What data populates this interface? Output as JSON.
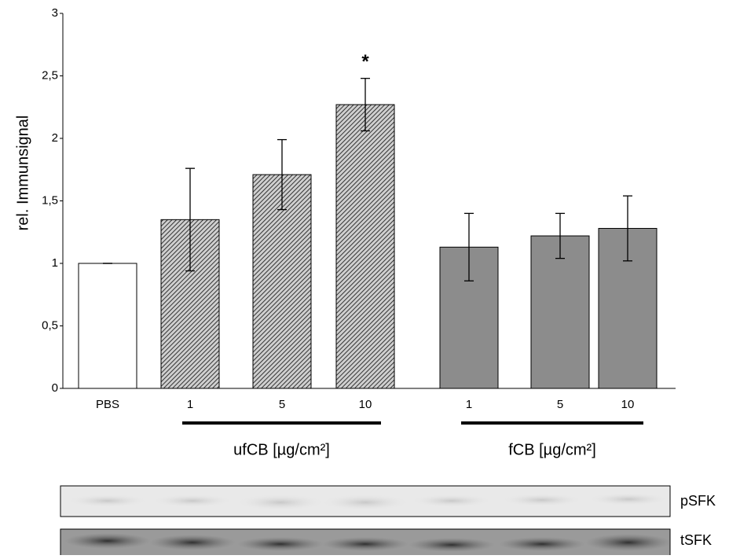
{
  "chart_data": {
    "type": "bar",
    "ylabel": "rel. Immunsignal",
    "categories": [
      "PBS",
      "1",
      "5",
      "10",
      "1",
      "5",
      "10"
    ],
    "values": [
      1.0,
      1.35,
      1.71,
      2.27,
      1.13,
      1.22,
      1.28
    ],
    "errors": [
      0.0,
      0.41,
      0.28,
      0.21,
      0.27,
      0.18,
      0.26
    ],
    "colors": [
      "#ffffff",
      "#6a6a6a",
      "#6a6a6a",
      "#6a6a6a",
      "#8c8c8c",
      "#8c8c8c",
      "#8c8c8c"
    ],
    "hatched": [
      false,
      true,
      true,
      true,
      false,
      false,
      false
    ],
    "ylim": [
      0,
      3
    ],
    "yticks": [
      0,
      {
        "value": 0.5,
        "label": "0,5"
      },
      1,
      {
        "value": 1.5,
        "label": "1,5"
      },
      2,
      {
        "value": 2.5,
        "label": "2,5"
      },
      3
    ],
    "groups": [
      {
        "label": "ufCB [µg/cm²]",
        "first": 1,
        "last": 3
      },
      {
        "label": "fCB [µg/cm²]",
        "first": 4,
        "last": 6
      }
    ],
    "annotations": [
      {
        "text": "*",
        "index": 3
      }
    ],
    "blots": [
      {
        "label": "pSFK"
      },
      {
        "label": "tSFK"
      }
    ]
  }
}
